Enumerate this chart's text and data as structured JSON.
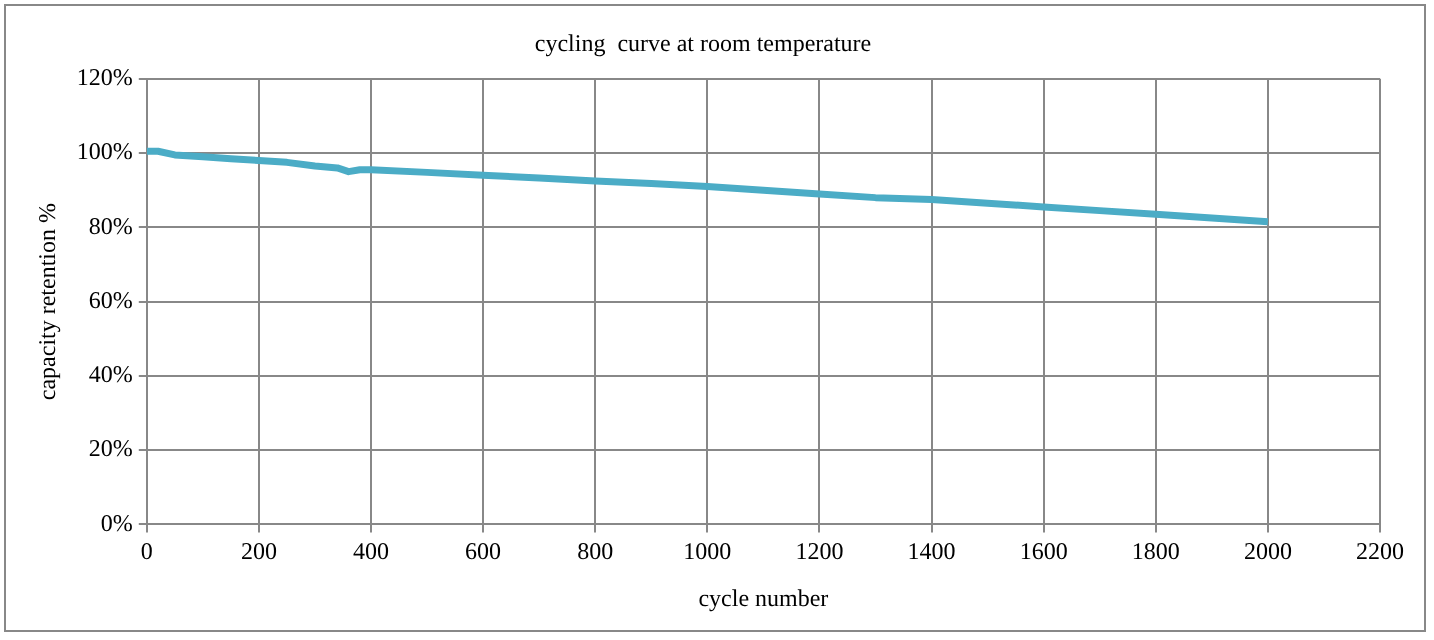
{
  "chart_data": {
    "type": "line",
    "title": "cycling  curve at room temperature",
    "xlabel": "cycle number",
    "ylabel": "capacity retention %",
    "series": [
      {
        "color": "#4bacc6",
        "x": [
          0,
          20,
          50,
          100,
          150,
          200,
          250,
          300,
          340,
          360,
          380,
          400,
          500,
          600,
          700,
          800,
          900,
          1000,
          1100,
          1200,
          1300,
          1400,
          1500,
          1600,
          1700,
          1800,
          1900,
          2000
        ],
        "values": [
          100.5,
          100.5,
          99.5,
          99,
          98.5,
          98,
          97.5,
          96.5,
          96,
          95,
          95.5,
          95.5,
          94.8,
          94,
          93.3,
          92.5,
          91.8,
          91,
          90,
          89,
          88,
          87.5,
          86.5,
          85.5,
          84.5,
          83.5,
          82.5,
          81.5
        ]
      }
    ],
    "xlim": [
      0,
      2200
    ],
    "xticks": [
      0,
      200,
      400,
      600,
      800,
      1000,
      1200,
      1400,
      1600,
      1800,
      2000,
      2200
    ],
    "ylim": [
      0,
      120
    ],
    "yticks": [
      {
        "value": 0,
        "label": "0%"
      },
      {
        "value": 20,
        "label": "20%"
      },
      {
        "value": 40,
        "label": "40%"
      },
      {
        "value": 60,
        "label": "60%"
      },
      {
        "value": 80,
        "label": "80%"
      },
      {
        "value": 100,
        "label": "100%"
      },
      {
        "value": 120,
        "label": "120%"
      }
    ],
    "grid": true,
    "legend": false,
    "marker": "none",
    "line_style": "solid"
  }
}
